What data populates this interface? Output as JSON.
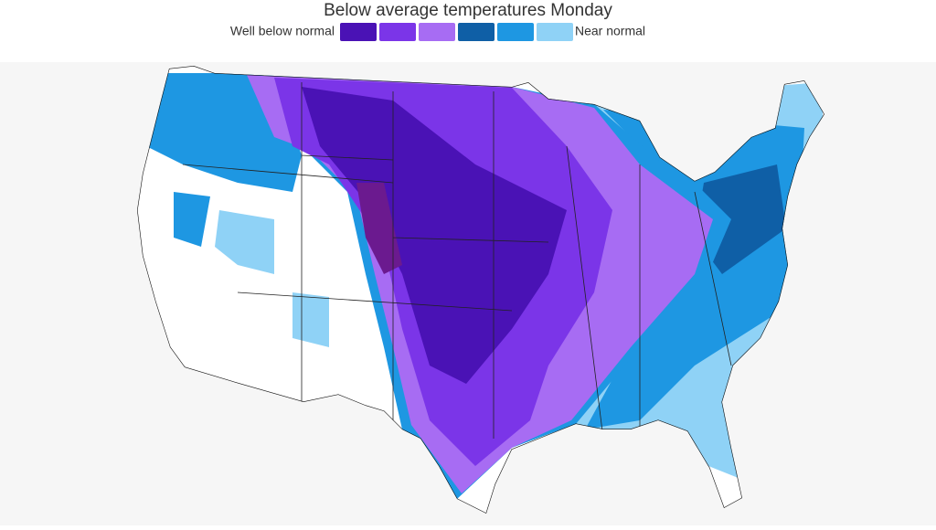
{
  "title": "Below average temperatures Monday",
  "legend": {
    "low_label": "Well below normal",
    "high_label": "Near normal",
    "colors": [
      "#4a12b5",
      "#7b35e8",
      "#a76cf3",
      "#0f5fa6",
      "#1e97e2",
      "#8fd2f6"
    ]
  }
}
